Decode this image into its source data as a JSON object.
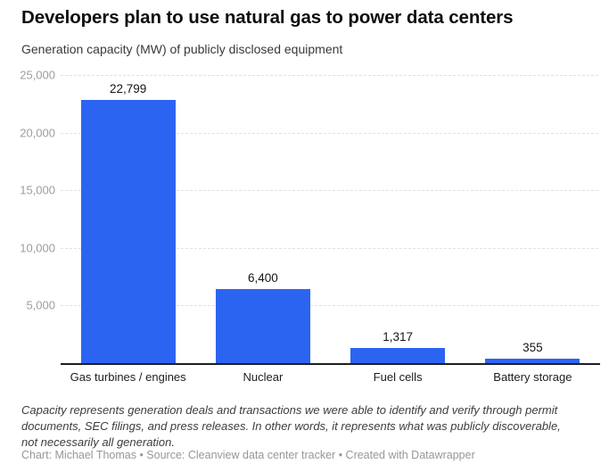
{
  "header": {
    "title": "Developers plan to use natural gas to power data centers",
    "subtitle": "Generation capacity (MW) of publicly disclosed equipment"
  },
  "chart_data": {
    "type": "bar",
    "title": "Developers plan to use natural gas to power data centers",
    "subtitle": "Generation capacity (MW) of publicly disclosed equipment",
    "categories": [
      "Gas turbines / engines",
      "Nuclear",
      "Fuel cells",
      "Battery storage"
    ],
    "values": [
      22799,
      6400,
      1317,
      355
    ],
    "value_labels": [
      "22,799",
      "6,400",
      "1,317",
      "355"
    ],
    "xlabel": "",
    "ylabel": "Generation capacity (MW)",
    "ylim": [
      0,
      25000
    ],
    "yticks": [
      5000,
      10000,
      15000,
      20000,
      25000
    ],
    "ytick_labels": [
      "5,000",
      "10,000",
      "15,000",
      "20,000",
      "25,000"
    ],
    "grid": true,
    "legend": "none",
    "bar_color": "#2c64f2"
  },
  "footer": {
    "note": "Capacity represents generation deals and transactions we were able to identify and verify through permit documents, SEC filings, and press releases. In other words, it represents what was publicly discoverable, not necessarily all generation.",
    "byline": "Chart: Michael Thomas • Source: Cleanview data center tracker • Created with Datawrapper"
  },
  "colors": {
    "accent": "#2c64f2",
    "baseline": "#1f1f1f",
    "gridline": "#e2e2e2",
    "tick_text": "#9d9d9d",
    "label_text": "#1d1d1d"
  }
}
